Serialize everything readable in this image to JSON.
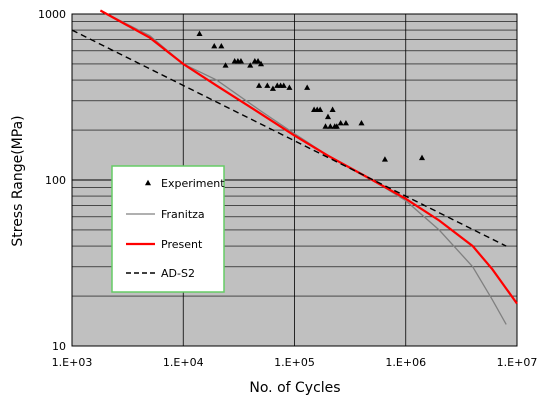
{
  "chart_data": {
    "type": "scatter",
    "title": "",
    "xlabel": "No. of Cycles",
    "ylabel": "Stress Range(MPa)",
    "x_scale": "log",
    "y_scale": "log",
    "xlim": [
      1000,
      10000000
    ],
    "ylim": [
      10,
      1000
    ],
    "x_ticks": [
      {
        "value": 1000,
        "label": "1.E+03"
      },
      {
        "value": 10000,
        "label": "1.E+04"
      },
      {
        "value": 100000,
        "label": "1.E+05"
      },
      {
        "value": 1000000,
        "label": "1.E+06"
      },
      {
        "value": 10000000,
        "label": "1.E+07"
      }
    ],
    "y_ticks": [
      {
        "value": 10,
        "label": "10"
      },
      {
        "value": 100,
        "label": "100"
      },
      {
        "value": 1000,
        "label": "1000"
      }
    ],
    "grid": true,
    "legend_position": "lower-left",
    "colors": {
      "plot_background": "#c0c0c0",
      "grid": "#000000",
      "experiment": "#000000",
      "franitza": "#808080",
      "present": "#ff0000",
      "ad_s2": "#000000",
      "legend_border": "#66cc66"
    },
    "series": [
      {
        "name": "Experiment",
        "style": "triangle-markers",
        "points": [
          [
            14000,
            760
          ],
          [
            19000,
            640
          ],
          [
            22000,
            640
          ],
          [
            24000,
            490
          ],
          [
            29000,
            520
          ],
          [
            31000,
            520
          ],
          [
            33000,
            520
          ],
          [
            40000,
            490
          ],
          [
            44000,
            520
          ],
          [
            47000,
            520
          ],
          [
            50000,
            500
          ],
          [
            48000,
            370
          ],
          [
            57000,
            370
          ],
          [
            64000,
            355
          ],
          [
            70000,
            370
          ],
          [
            75000,
            370
          ],
          [
            80000,
            370
          ],
          [
            90000,
            360
          ],
          [
            130000,
            360
          ],
          [
            150000,
            265
          ],
          [
            160000,
            265
          ],
          [
            170000,
            265
          ],
          [
            190000,
            210
          ],
          [
            200000,
            240
          ],
          [
            210000,
            210
          ],
          [
            220000,
            265
          ],
          [
            230000,
            210
          ],
          [
            240000,
            210
          ],
          [
            260000,
            220
          ],
          [
            290000,
            220
          ],
          [
            400000,
            220
          ],
          [
            650000,
            133
          ],
          [
            1400000,
            136
          ]
        ]
      },
      {
        "name": "Franitza",
        "style": "line",
        "points": [
          [
            1800,
            1050
          ],
          [
            5000,
            740
          ],
          [
            10000,
            500
          ],
          [
            20000,
            400
          ],
          [
            50000,
            260
          ],
          [
            100000,
            190
          ],
          [
            200000,
            140
          ],
          [
            500000,
            100
          ],
          [
            1000000,
            75
          ],
          [
            2000000,
            50
          ],
          [
            4000000,
            30
          ],
          [
            6000000,
            19
          ],
          [
            8000000,
            13.5
          ]
        ]
      },
      {
        "name": "Present",
        "style": "line",
        "points": [
          [
            1800,
            1050
          ],
          [
            5000,
            720
          ],
          [
            10000,
            500
          ],
          [
            20000,
            370
          ],
          [
            50000,
            250
          ],
          [
            100000,
            185
          ],
          [
            200000,
            140
          ],
          [
            500000,
            100
          ],
          [
            1000000,
            77
          ],
          [
            2000000,
            57
          ],
          [
            4000000,
            40
          ],
          [
            6000000,
            29
          ],
          [
            10000000,
            18
          ]
        ]
      },
      {
        "name": "AD-S2",
        "style": "dashed-line",
        "points": [
          [
            1000,
            800
          ],
          [
            8000000,
            40
          ]
        ]
      }
    ]
  }
}
